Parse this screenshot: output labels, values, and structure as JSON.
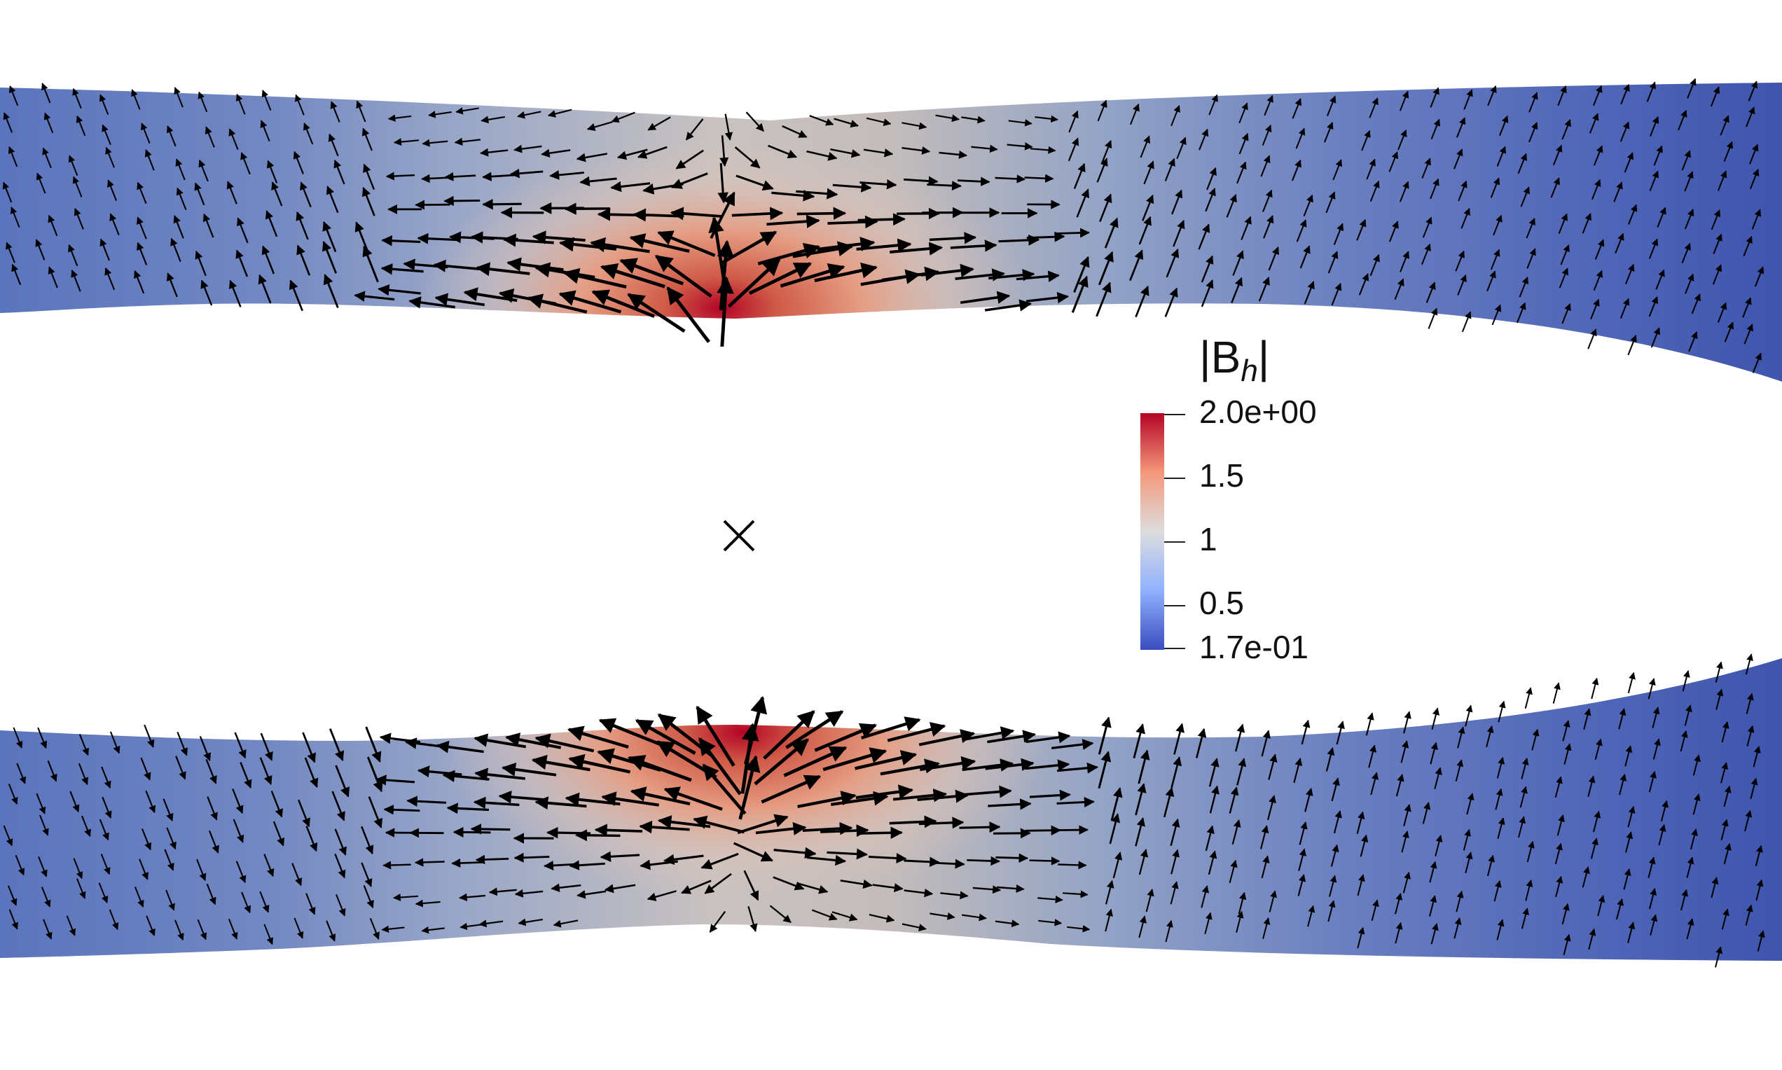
{
  "colorbar": {
    "title_prefix": "|B",
    "title_subscript": "h",
    "title_suffix": "|",
    "max_label": "2.0e+00",
    "min_label": "1.7e-01",
    "ticks": [
      "1.5",
      "1",
      "0.5"
    ],
    "colormap": [
      "#3b4cc0",
      "#8fb1fe",
      "#dddddd",
      "#f4987a",
      "#b40426"
    ]
  },
  "marker": {
    "symbol": "×"
  },
  "colors": {
    "low": "#3b4cc0",
    "mid": "#dddddd",
    "high": "#b40426",
    "arrow": "#000000",
    "background": "#ffffff"
  }
}
